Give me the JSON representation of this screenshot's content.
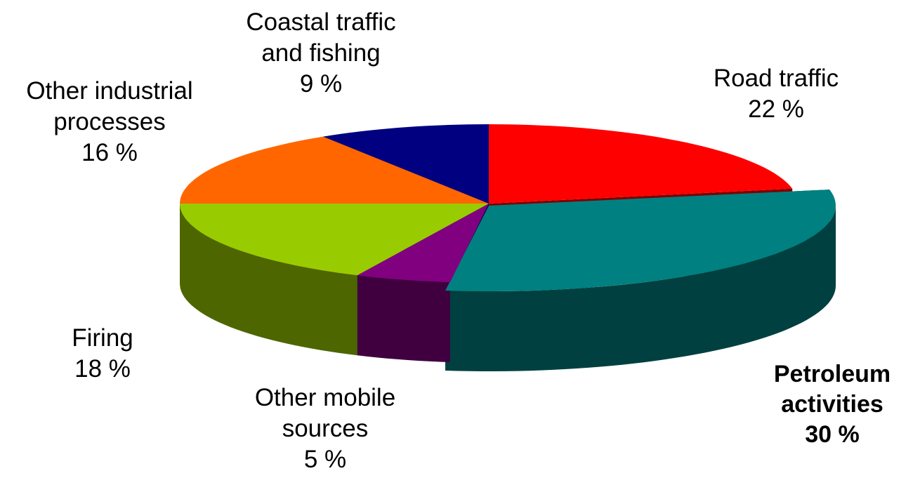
{
  "chart_data": {
    "type": "pie",
    "style": "3d-exploded",
    "slices": [
      {
        "key": "road",
        "label_lines": [
          "Road traffic"
        ],
        "value_label": "22 %",
        "value": 22,
        "color": "#FF0000",
        "side_color": "#800000",
        "bold": false
      },
      {
        "key": "petroleum",
        "label_lines": [
          "Petroleum",
          "activities"
        ],
        "value_label": "30 %",
        "value": 30,
        "color": "#008080",
        "side_color": "#004040",
        "bold": true,
        "exploded": true
      },
      {
        "key": "mobile",
        "label_lines": [
          "Other mobile",
          "sources"
        ],
        "value_label": "5 %",
        "value": 5,
        "color": "#800080",
        "side_color": "#400040",
        "bold": false
      },
      {
        "key": "firing",
        "label_lines": [
          "Firing"
        ],
        "value_label": "18 %",
        "value": 18,
        "color": "#99CC00",
        "side_color": "#4D6600",
        "bold": false
      },
      {
        "key": "industrial",
        "label_lines": [
          "Other industrial",
          "processes"
        ],
        "value_label": "16 %",
        "value": 16,
        "color": "#FF6600",
        "side_color": "#803300",
        "bold": false
      },
      {
        "key": "coastal",
        "label_lines": [
          "Coastal traffic",
          "and fishing"
        ],
        "value_label": "9 %",
        "value": 9,
        "color": "#000080",
        "side_color": "#000040",
        "bold": false
      }
    ]
  }
}
